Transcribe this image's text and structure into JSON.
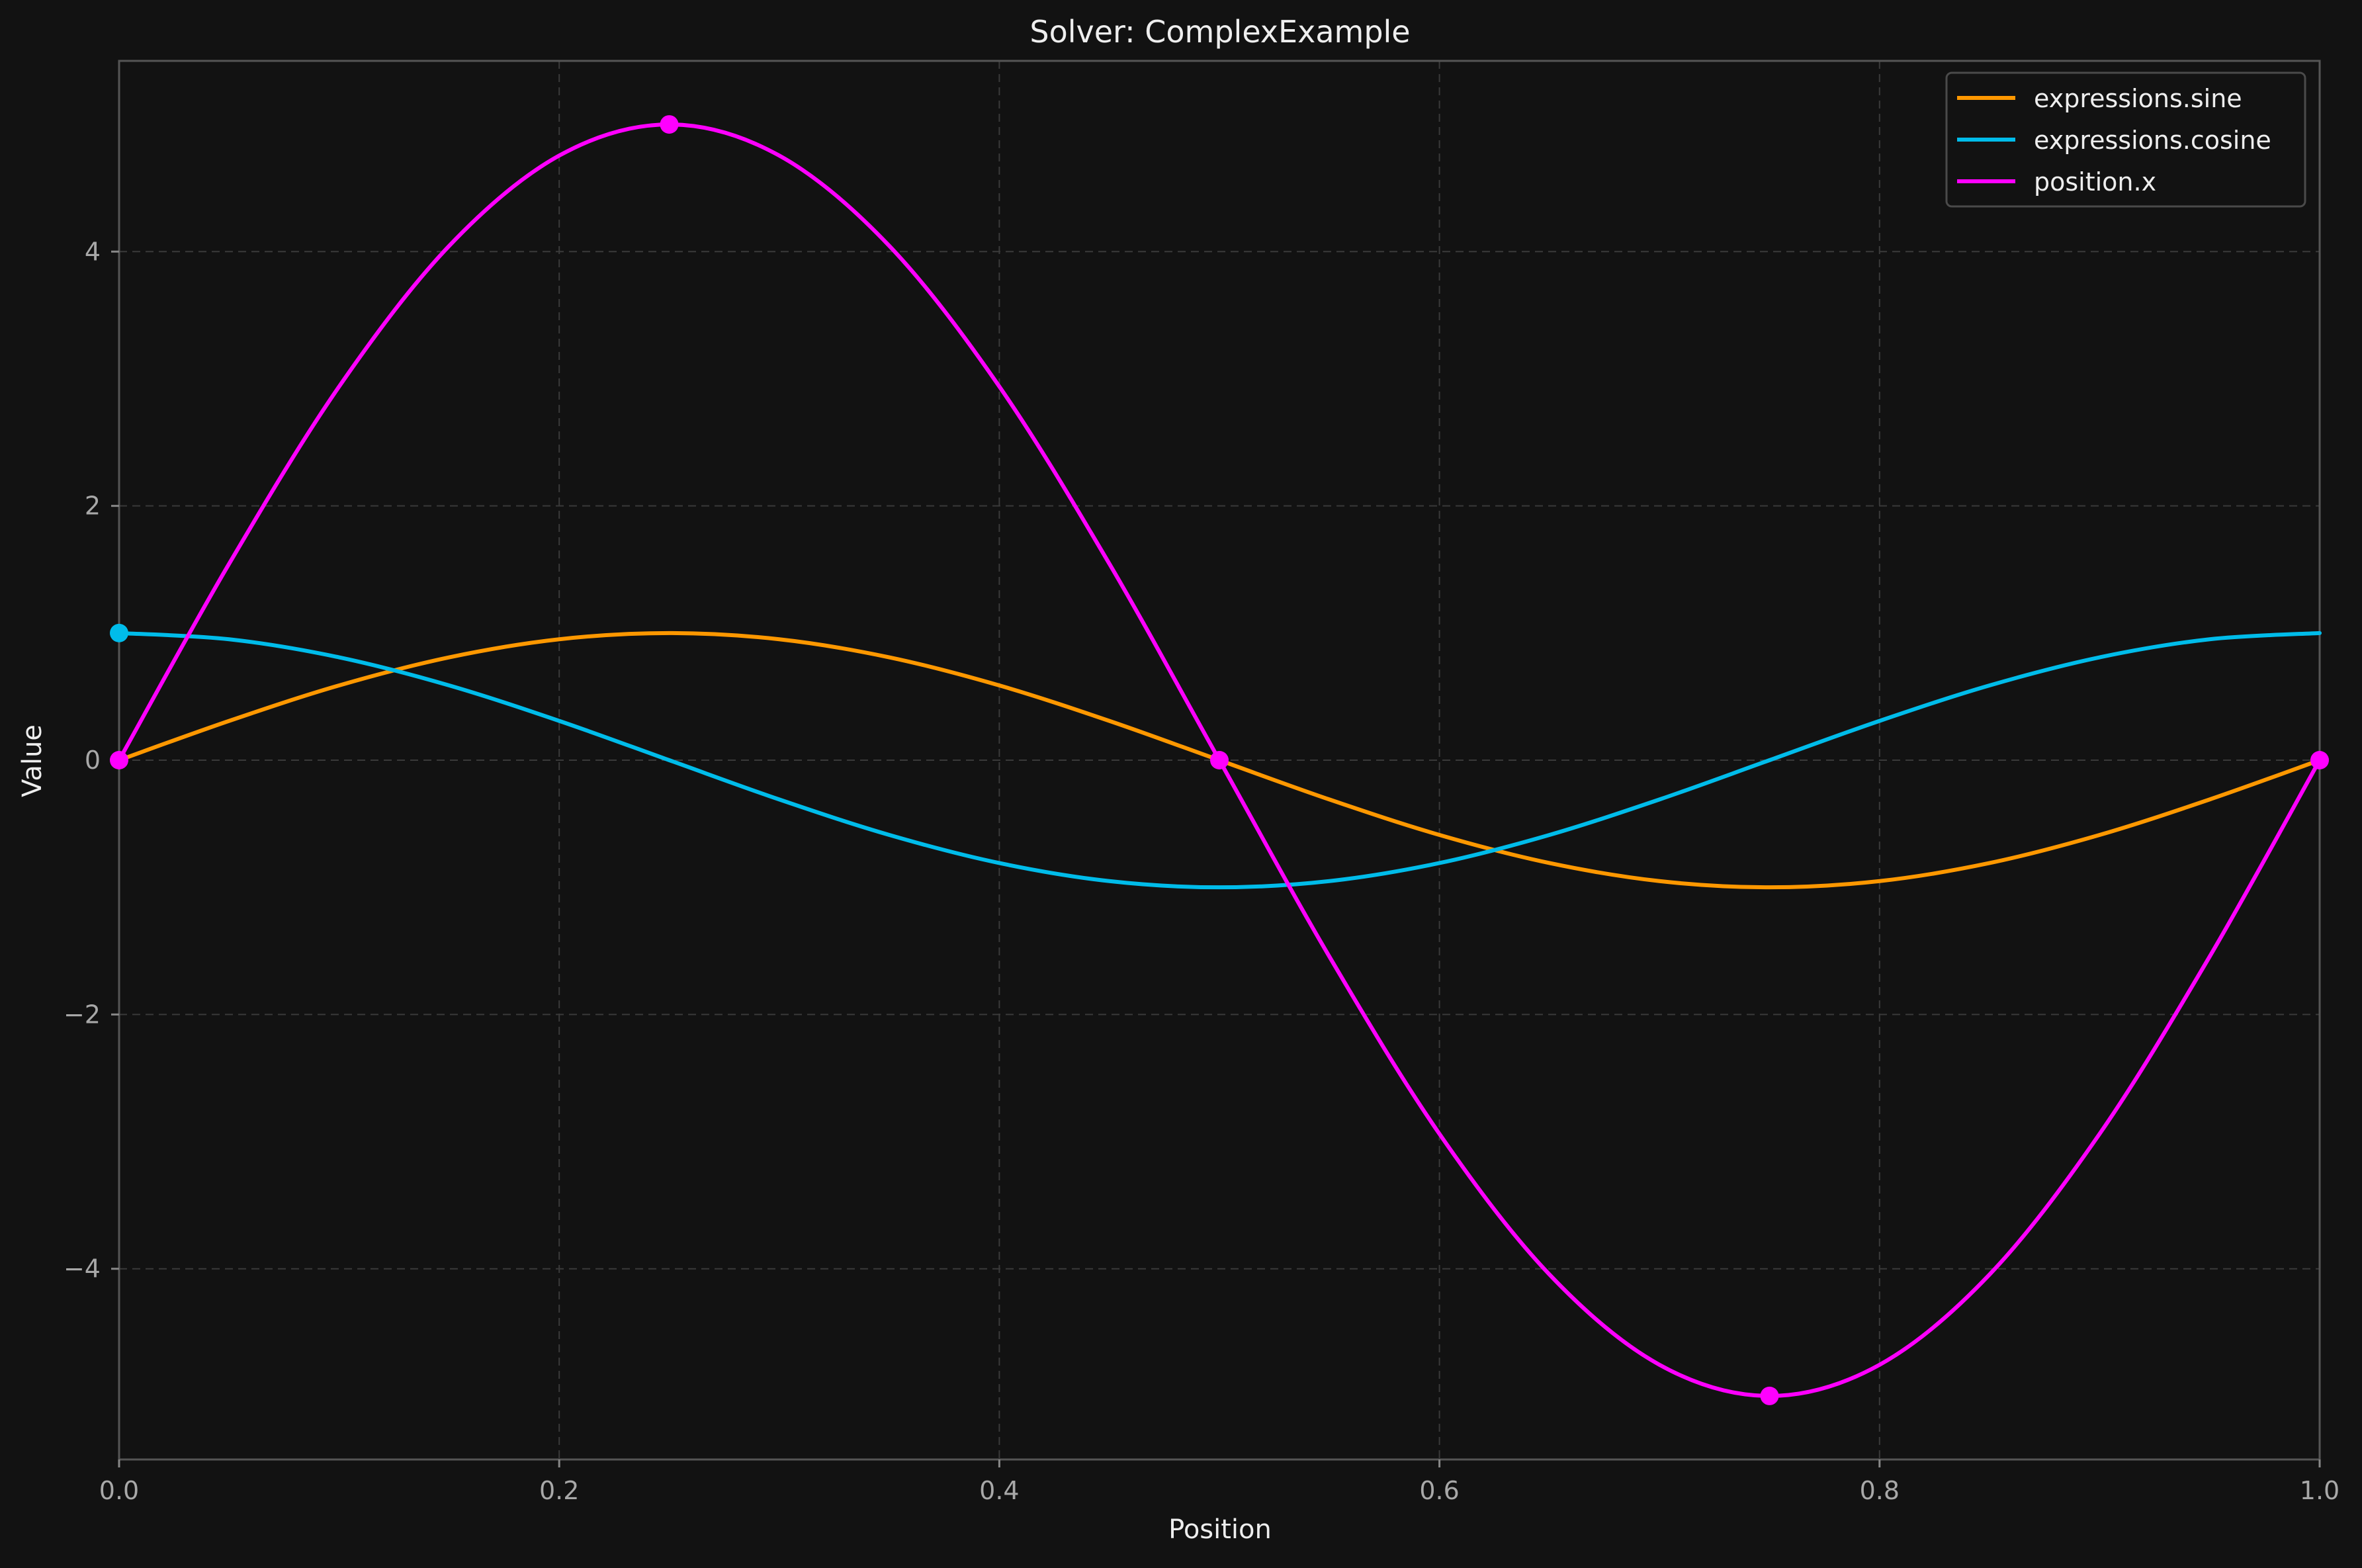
{
  "chart_data": {
    "type": "line",
    "title": "Solver: ComplexExample",
    "xlabel": "Position",
    "ylabel": "Value",
    "xlim": [
      0,
      1
    ],
    "ylim": [
      -5.5,
      5.5
    ],
    "x_ticks": [
      0.0,
      0.2,
      0.4,
      0.6,
      0.8,
      1.0
    ],
    "x_tick_labels": [
      "0.0",
      "0.2",
      "0.4",
      "0.6",
      "0.8",
      "1.0"
    ],
    "y_ticks": [
      -4,
      -2,
      0,
      2,
      4
    ],
    "y_tick_labels": [
      "−4",
      "−2",
      "0",
      "2",
      "4"
    ],
    "grid": true,
    "legend_position": "top-right",
    "background_color": "#121212",
    "series": [
      {
        "name": "expressions.sine",
        "color": "#ff9800",
        "x": [
          0,
          0.05,
          0.1,
          0.15,
          0.2,
          0.25,
          0.3,
          0.35,
          0.4,
          0.45,
          0.5,
          0.55,
          0.6,
          0.65,
          0.7,
          0.75,
          0.8,
          0.85,
          0.9,
          0.95,
          1
        ],
        "y": [
          0,
          0.309,
          0.588,
          0.809,
          0.951,
          1,
          0.951,
          0.809,
          0.588,
          0.309,
          0,
          -0.309,
          -0.588,
          -0.809,
          -0.951,
          -1,
          -0.951,
          -0.809,
          -0.588,
          -0.309,
          0
        ],
        "markers": []
      },
      {
        "name": "expressions.cosine",
        "color": "#00bcea",
        "x": [
          0,
          0.05,
          0.1,
          0.15,
          0.2,
          0.25,
          0.3,
          0.35,
          0.4,
          0.45,
          0.5,
          0.55,
          0.6,
          0.65,
          0.7,
          0.75,
          0.8,
          0.85,
          0.9,
          0.95,
          1
        ],
        "y": [
          1,
          0.951,
          0.809,
          0.588,
          0.309,
          0,
          -0.309,
          -0.588,
          -0.809,
          -0.951,
          -1,
          -0.951,
          -0.809,
          -0.588,
          -0.309,
          0,
          0.309,
          0.588,
          0.809,
          0.951,
          1
        ],
        "markers": [
          [
            0,
            1
          ]
        ]
      },
      {
        "name": "position.x",
        "color": "#ff00ff",
        "x": [
          0,
          0.05,
          0.1,
          0.15,
          0.2,
          0.25,
          0.3,
          0.35,
          0.4,
          0.45,
          0.5,
          0.55,
          0.6,
          0.65,
          0.7,
          0.75,
          0.8,
          0.85,
          0.9,
          0.95,
          1
        ],
        "y": [
          0,
          1.545,
          2.939,
          4.045,
          4.755,
          5,
          4.755,
          4.045,
          2.939,
          1.545,
          0,
          -1.545,
          -2.939,
          -4.045,
          -4.755,
          -5,
          -4.755,
          -4.045,
          -2.939,
          -1.545,
          0
        ],
        "markers": [
          [
            0,
            0
          ],
          [
            0.25,
            5
          ],
          [
            0.5,
            0
          ],
          [
            0.75,
            -5
          ],
          [
            1,
            0
          ]
        ]
      }
    ]
  }
}
